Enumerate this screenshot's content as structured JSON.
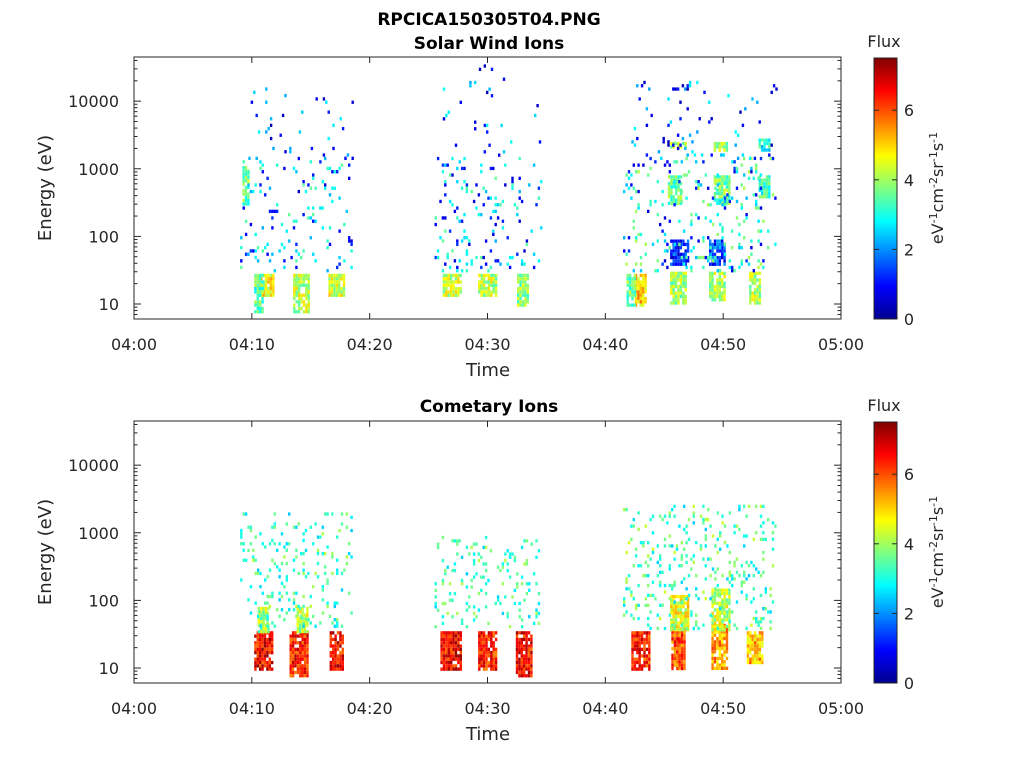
{
  "figure": {
    "filename_title": "RPCICA150305T04.PNG"
  },
  "chart_data": [
    {
      "type": "heatmap",
      "title": "Solar Wind Ions",
      "xlabel": "Time",
      "ylabel": "Energy (eV)",
      "x_ticks": [
        "04:00",
        "04:10",
        "04:20",
        "04:30",
        "04:40",
        "04:50",
        "05:00"
      ],
      "y_ticks": [
        "10",
        "100",
        "1000",
        "10000"
      ],
      "x_range_minutes": [
        0,
        60
      ],
      "y_range_ev": [
        6,
        45000
      ],
      "y_scale": "log",
      "colorbar": {
        "title": "Flux",
        "unit_label": "eV-1cm-2sr-1s-1",
        "ticks": [
          "0",
          "2",
          "4",
          "6"
        ],
        "range": [
          0,
          7.5
        ],
        "colormap": "jet"
      },
      "blobs": [
        {
          "t0": 9.2,
          "t1": 9.8,
          "e0": 300,
          "e1": 1100,
          "level": 3.6
        },
        {
          "t0": 10.5,
          "t1": 11.8,
          "e0": 13,
          "e1": 28,
          "level": 4.6
        },
        {
          "t0": 10.2,
          "t1": 11.0,
          "e0": 8,
          "e1": 28,
          "level": 3.4
        },
        {
          "t0": 13.5,
          "t1": 14.8,
          "e0": 8,
          "e1": 28,
          "level": 4.2
        },
        {
          "t0": 16.5,
          "t1": 17.8,
          "e0": 13,
          "e1": 28,
          "level": 4.4
        },
        {
          "t0": 26.2,
          "t1": 27.8,
          "e0": 13,
          "e1": 28,
          "level": 4.3
        },
        {
          "t0": 29.2,
          "t1": 30.8,
          "e0": 13,
          "e1": 28,
          "level": 4.2
        },
        {
          "t0": 32.5,
          "t1": 33.5,
          "e0": 10,
          "e1": 28,
          "level": 3.9
        },
        {
          "t0": 42.5,
          "t1": 43.5,
          "e0": 10,
          "e1": 28,
          "level": 5.0
        },
        {
          "t0": 41.8,
          "t1": 42.5,
          "e0": 10,
          "e1": 28,
          "level": 3.6
        },
        {
          "t0": 45.5,
          "t1": 46.8,
          "e0": 10,
          "e1": 30,
          "level": 4.0
        },
        {
          "t0": 48.8,
          "t1": 50.2,
          "e0": 12,
          "e1": 30,
          "level": 4.1
        },
        {
          "t0": 52.2,
          "t1": 53.2,
          "e0": 10,
          "e1": 30,
          "level": 4.2
        },
        {
          "t0": 45.5,
          "t1": 47.0,
          "e0": 40,
          "e1": 90,
          "level": 1.2
        },
        {
          "t0": 48.8,
          "t1": 50.2,
          "e0": 40,
          "e1": 90,
          "level": 1.4
        },
        {
          "t0": 45.5,
          "t1": 46.8,
          "e0": 2000,
          "e1": 2500,
          "level": 4.1
        },
        {
          "t0": 49.2,
          "t1": 50.3,
          "e0": 1800,
          "e1": 2500,
          "level": 4.0
        },
        {
          "t0": 53.0,
          "t1": 54.0,
          "e0": 1800,
          "e1": 2800,
          "level": 3.0
        },
        {
          "t0": 45.3,
          "t1": 46.5,
          "e0": 300,
          "e1": 800,
          "level": 3.6
        },
        {
          "t0": 49.2,
          "t1": 50.5,
          "e0": 300,
          "e1": 800,
          "level": 3.6
        },
        {
          "t0": 53.0,
          "t1": 54.0,
          "e0": 400,
          "e1": 800,
          "level": 3.3
        }
      ],
      "speckle": [
        {
          "t0": 9.0,
          "t1": 18.5,
          "e0": 30,
          "e1": 1500,
          "density": 0.09,
          "levels": [
            1.0,
            2.6,
            3.2
          ]
        },
        {
          "t0": 9.5,
          "t1": 18.5,
          "e0": 1500,
          "e1": 16000,
          "density": 0.035,
          "levels": [
            0.8,
            2.5
          ]
        },
        {
          "t0": 25.5,
          "t1": 34.5,
          "e0": 30,
          "e1": 1500,
          "density": 0.09,
          "levels": [
            1.0,
            2.6,
            3.2
          ]
        },
        {
          "t0": 26.0,
          "t1": 34.5,
          "e0": 1500,
          "e1": 35000,
          "density": 0.03,
          "levels": [
            0.8,
            2.5
          ]
        },
        {
          "t0": 41.5,
          "t1": 54.5,
          "e0": 30,
          "e1": 1500,
          "density": 0.12,
          "levels": [
            1.0,
            2.6,
            3.3,
            3.8
          ]
        },
        {
          "t0": 42.0,
          "t1": 54.5,
          "e0": 1500,
          "e1": 20000,
          "density": 0.035,
          "levels": [
            0.8,
            2.5
          ]
        }
      ]
    },
    {
      "type": "heatmap",
      "title": "Cometary Ions",
      "xlabel": "Time",
      "ylabel": "Energy (eV)",
      "x_ticks": [
        "04:00",
        "04:10",
        "04:20",
        "04:30",
        "04:40",
        "04:50",
        "05:00"
      ],
      "y_ticks": [
        "10",
        "100",
        "1000",
        "10000"
      ],
      "x_range_minutes": [
        0,
        60
      ],
      "y_range_ev": [
        6,
        45000
      ],
      "y_scale": "log",
      "colorbar": {
        "title": "Flux",
        "unit_label": "eV-1cm-2sr-1s-1",
        "ticks": [
          "0",
          "2",
          "4",
          "6"
        ],
        "range": [
          0,
          7.5
        ],
        "colormap": "jet"
      },
      "blobs": [
        {
          "t0": 10.2,
          "t1": 11.8,
          "e0": 10,
          "e1": 35,
          "level": 6.6
        },
        {
          "t0": 13.2,
          "t1": 14.8,
          "e0": 8,
          "e1": 35,
          "level": 6.4
        },
        {
          "t0": 16.6,
          "t1": 17.8,
          "e0": 10,
          "e1": 35,
          "level": 6.5
        },
        {
          "t0": 26.0,
          "t1": 27.8,
          "e0": 10,
          "e1": 35,
          "level": 6.6
        },
        {
          "t0": 29.2,
          "t1": 30.8,
          "e0": 10,
          "e1": 35,
          "level": 6.3
        },
        {
          "t0": 32.4,
          "t1": 33.8,
          "e0": 8,
          "e1": 35,
          "level": 6.5
        },
        {
          "t0": 42.2,
          "t1": 43.8,
          "e0": 10,
          "e1": 35,
          "level": 6.4
        },
        {
          "t0": 45.6,
          "t1": 46.8,
          "e0": 10,
          "e1": 40,
          "level": 6.0
        },
        {
          "t0": 49.0,
          "t1": 50.4,
          "e0": 10,
          "e1": 45,
          "level": 5.4
        },
        {
          "t0": 52.0,
          "t1": 53.4,
          "e0": 12,
          "e1": 35,
          "level": 5.2
        },
        {
          "t0": 45.5,
          "t1": 47.0,
          "e0": 35,
          "e1": 120,
          "level": 4.6
        },
        {
          "t0": 49.0,
          "t1": 50.5,
          "e0": 35,
          "e1": 150,
          "level": 4.3
        },
        {
          "t0": 10.5,
          "t1": 11.5,
          "e0": 35,
          "e1": 80,
          "level": 4.0
        },
        {
          "t0": 13.8,
          "t1": 14.8,
          "e0": 35,
          "e1": 80,
          "level": 4.2
        }
      ],
      "speckle": [
        {
          "t0": 9.0,
          "t1": 18.5,
          "e0": 40,
          "e1": 2000,
          "density": 0.13,
          "levels": [
            2.8,
            3.2,
            3.8
          ]
        },
        {
          "t0": 25.5,
          "t1": 34.5,
          "e0": 40,
          "e1": 900,
          "density": 0.13,
          "levels": [
            2.8,
            3.2,
            3.8
          ]
        },
        {
          "t0": 41.5,
          "t1": 54.5,
          "e0": 40,
          "e1": 2600,
          "density": 0.14,
          "levels": [
            2.8,
            3.3,
            4.0
          ]
        }
      ]
    }
  ]
}
